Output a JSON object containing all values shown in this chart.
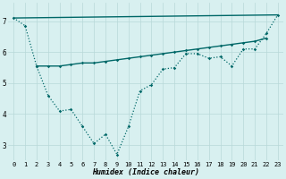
{
  "xlabel": "Humidex (Indice chaleur)",
  "background_color": "#d8f0f0",
  "grid_color": "#b8d8d8",
  "line_color": "#006868",
  "xlim": [
    -0.5,
    23.5
  ],
  "ylim": [
    2.5,
    7.6
  ],
  "xticks": [
    0,
    1,
    2,
    3,
    4,
    5,
    6,
    7,
    8,
    9,
    10,
    11,
    12,
    13,
    14,
    15,
    16,
    17,
    18,
    19,
    20,
    21,
    22,
    23
  ],
  "yticks": [
    3,
    4,
    5,
    6,
    7
  ],
  "line1_x": [
    0,
    1,
    2,
    3,
    4,
    5,
    6,
    7,
    8,
    9,
    10,
    11,
    12,
    13,
    14,
    15,
    16,
    17,
    18,
    19,
    20,
    21,
    22,
    23
  ],
  "line1_y": [
    7.1,
    6.85,
    5.55,
    4.6,
    4.1,
    4.15,
    3.6,
    3.05,
    3.35,
    2.7,
    3.6,
    4.75,
    4.95,
    5.45,
    5.5,
    5.95,
    5.95,
    5.8,
    5.85,
    5.55,
    6.1,
    6.1,
    6.6,
    7.2
  ],
  "line2_x": [
    2,
    3,
    4,
    5,
    6,
    7,
    8,
    9,
    10,
    11,
    12,
    13,
    14,
    15,
    16,
    17,
    18,
    19,
    20,
    21,
    22
  ],
  "line2_y": [
    5.55,
    5.55,
    5.55,
    5.6,
    5.65,
    5.65,
    5.7,
    5.75,
    5.8,
    5.85,
    5.9,
    5.95,
    6.0,
    6.05,
    6.1,
    6.15,
    6.2,
    6.25,
    6.3,
    6.35,
    6.45
  ],
  "line3_x": [
    0,
    23
  ],
  "line3_y": [
    7.1,
    7.2
  ]
}
